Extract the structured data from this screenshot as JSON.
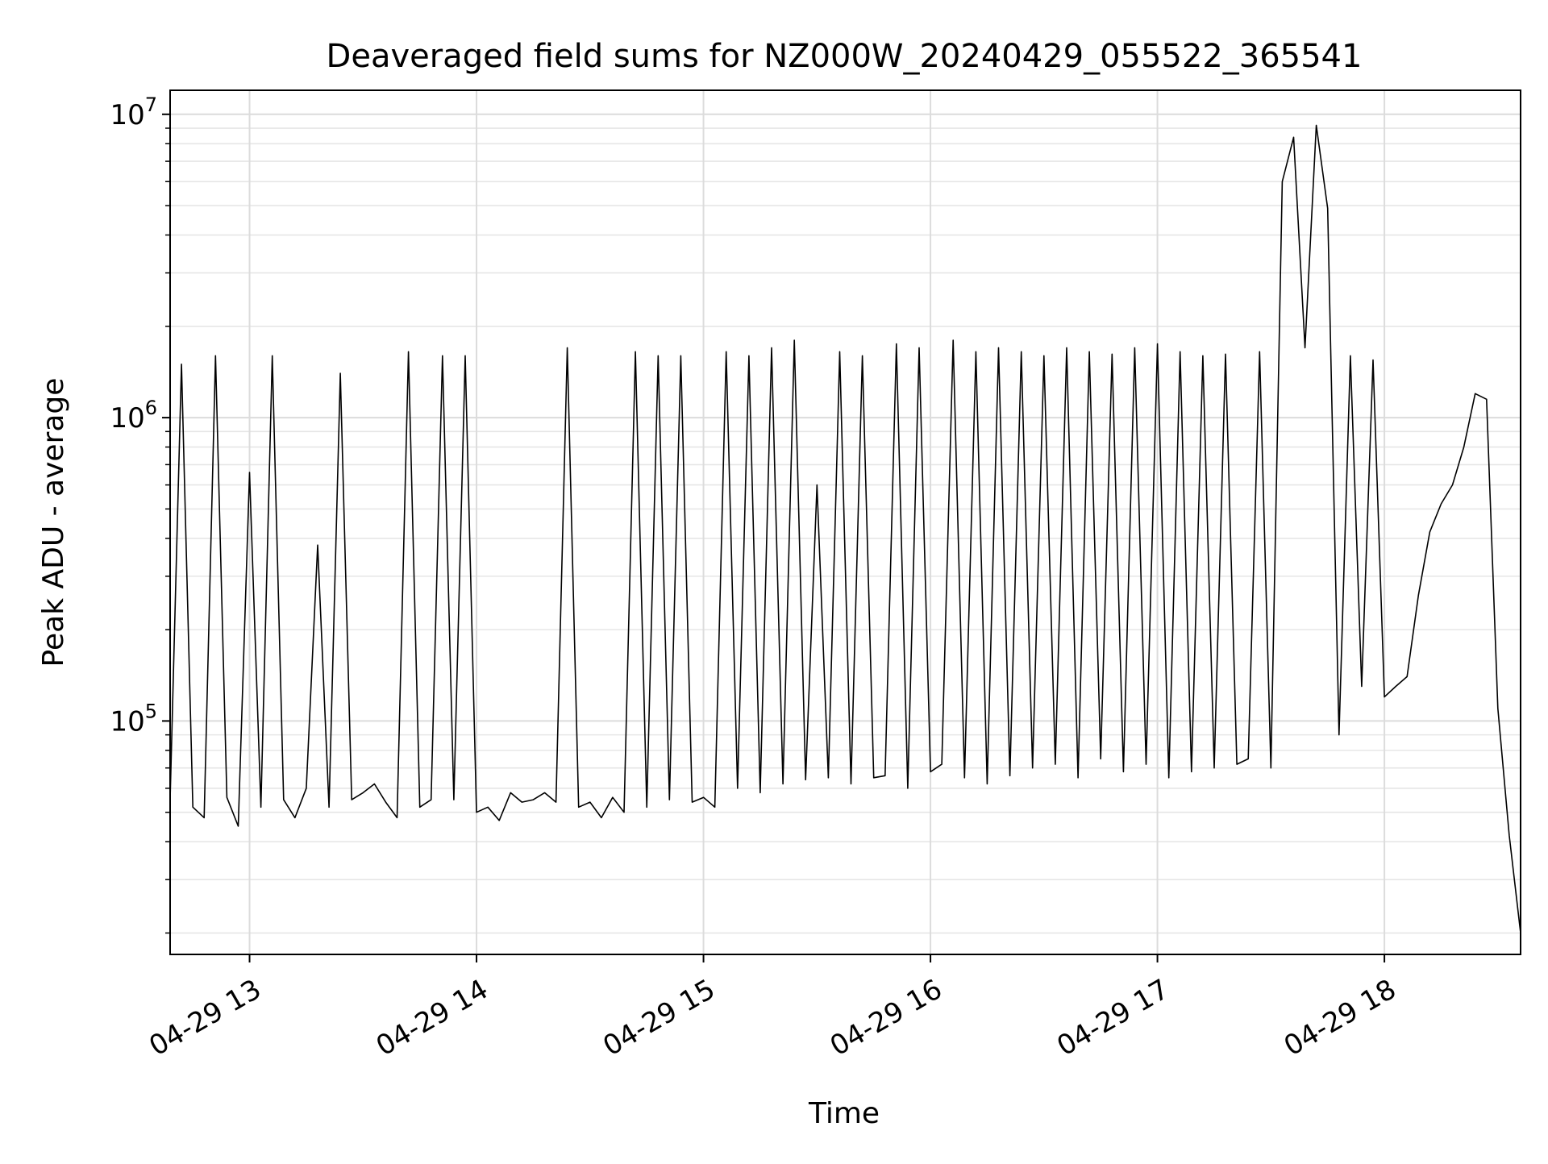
{
  "chart_data": {
    "type": "line",
    "title": "Deaveraged field sums for NZ000W_20240429_055522_365541",
    "xlabel": "Time",
    "ylabel": "Peak ADU - average",
    "yscale": "log",
    "ylim": [
      17000,
      12000000
    ],
    "xlim": [
      "2024-04-29 12:39",
      "2024-04-29 18:36"
    ],
    "x_ticks": [
      {
        "value": "2024-04-29 13:00",
        "label": "04-29 13"
      },
      {
        "value": "2024-04-29 14:00",
        "label": "04-29 14"
      },
      {
        "value": "2024-04-29 15:00",
        "label": "04-29 15"
      },
      {
        "value": "2024-04-29 16:00",
        "label": "04-29 16"
      },
      {
        "value": "2024-04-29 17:00",
        "label": "04-29 17"
      },
      {
        "value": "2024-04-29 18:00",
        "label": "04-29 18"
      }
    ],
    "y_ticks": [
      {
        "value": 100000,
        "base": "10",
        "exp": "5"
      },
      {
        "value": 1000000,
        "base": "10",
        "exp": "6"
      },
      {
        "value": 10000000,
        "base": "10",
        "exp": "7"
      }
    ],
    "grid": true,
    "series": [
      {
        "color": "#000000",
        "x": [
          "2024-04-29 12:39",
          "2024-04-29 12:42",
          "2024-04-29 12:45",
          "2024-04-29 12:48",
          "2024-04-29 12:51",
          "2024-04-29 12:54",
          "2024-04-29 12:57",
          "2024-04-29 13:00",
          "2024-04-29 13:03",
          "2024-04-29 13:06",
          "2024-04-29 13:09",
          "2024-04-29 13:12",
          "2024-04-29 13:15",
          "2024-04-29 13:18",
          "2024-04-29 13:21",
          "2024-04-29 13:24",
          "2024-04-29 13:27",
          "2024-04-29 13:30",
          "2024-04-29 13:33",
          "2024-04-29 13:36",
          "2024-04-29 13:39",
          "2024-04-29 13:42",
          "2024-04-29 13:45",
          "2024-04-29 13:48",
          "2024-04-29 13:51",
          "2024-04-29 13:54",
          "2024-04-29 13:57",
          "2024-04-29 14:00",
          "2024-04-29 14:03",
          "2024-04-29 14:06",
          "2024-04-29 14:09",
          "2024-04-29 14:12",
          "2024-04-29 14:15",
          "2024-04-29 14:18",
          "2024-04-29 14:21",
          "2024-04-29 14:24",
          "2024-04-29 14:27",
          "2024-04-29 14:30",
          "2024-04-29 14:33",
          "2024-04-29 14:36",
          "2024-04-29 14:39",
          "2024-04-29 14:42",
          "2024-04-29 14:45",
          "2024-04-29 14:48",
          "2024-04-29 14:51",
          "2024-04-29 14:54",
          "2024-04-29 14:57",
          "2024-04-29 15:00",
          "2024-04-29 15:03",
          "2024-04-29 15:06",
          "2024-04-29 15:09",
          "2024-04-29 15:12",
          "2024-04-29 15:15",
          "2024-04-29 15:18",
          "2024-04-29 15:21",
          "2024-04-29 15:24",
          "2024-04-29 15:27",
          "2024-04-29 15:30",
          "2024-04-29 15:33",
          "2024-04-29 15:36",
          "2024-04-29 15:39",
          "2024-04-29 15:42",
          "2024-04-29 15:45",
          "2024-04-29 15:48",
          "2024-04-29 15:51",
          "2024-04-29 15:54",
          "2024-04-29 15:57",
          "2024-04-29 16:00",
          "2024-04-29 16:03",
          "2024-04-29 16:06",
          "2024-04-29 16:09",
          "2024-04-29 16:12",
          "2024-04-29 16:15",
          "2024-04-29 16:18",
          "2024-04-29 16:21",
          "2024-04-29 16:24",
          "2024-04-29 16:27",
          "2024-04-29 16:30",
          "2024-04-29 16:33",
          "2024-04-29 16:36",
          "2024-04-29 16:39",
          "2024-04-29 16:42",
          "2024-04-29 16:45",
          "2024-04-29 16:48",
          "2024-04-29 16:51",
          "2024-04-29 16:54",
          "2024-04-29 16:57",
          "2024-04-29 17:00",
          "2024-04-29 17:03",
          "2024-04-29 17:06",
          "2024-04-29 17:09",
          "2024-04-29 17:12",
          "2024-04-29 17:15",
          "2024-04-29 17:18",
          "2024-04-29 17:21",
          "2024-04-29 17:24",
          "2024-04-29 17:27",
          "2024-04-29 17:30",
          "2024-04-29 17:33",
          "2024-04-29 17:36",
          "2024-04-29 17:39",
          "2024-04-29 17:42",
          "2024-04-29 17:45",
          "2024-04-29 17:48",
          "2024-04-29 17:51",
          "2024-04-29 17:54",
          "2024-04-29 17:57",
          "2024-04-29 18:00",
          "2024-04-29 18:03",
          "2024-04-29 18:06",
          "2024-04-29 18:09",
          "2024-04-29 18:12",
          "2024-04-29 18:15",
          "2024-04-29 18:18",
          "2024-04-29 18:21",
          "2024-04-29 18:24",
          "2024-04-29 18:27",
          "2024-04-29 18:30",
          "2024-04-29 18:33",
          "2024-04-29 18:36"
        ],
        "y": [
          55000,
          1500000,
          52000,
          48000,
          1600000,
          56000,
          45000,
          660000,
          52000,
          1600000,
          55000,
          48000,
          60000,
          380000,
          52000,
          1400000,
          55000,
          58000,
          62000,
          54000,
          48000,
          1650000,
          52000,
          55000,
          1600000,
          55000,
          1600000,
          50000,
          52000,
          47000,
          58000,
          54000,
          55000,
          58000,
          54000,
          1700000,
          52000,
          54000,
          48000,
          56000,
          50000,
          1650000,
          52000,
          1600000,
          55000,
          1600000,
          54000,
          56000,
          52000,
          1650000,
          60000,
          1600000,
          58000,
          1700000,
          62000,
          1800000,
          64000,
          600000,
          65000,
          1650000,
          62000,
          1600000,
          65000,
          66000,
          1750000,
          60000,
          1700000,
          68000,
          72000,
          1800000,
          65000,
          1650000,
          62000,
          1700000,
          66000,
          1650000,
          70000,
          1600000,
          72000,
          1700000,
          65000,
          1650000,
          75000,
          1620000,
          68000,
          1700000,
          72000,
          1750000,
          65000,
          1650000,
          68000,
          1600000,
          70000,
          1620000,
          72000,
          75000,
          1650000,
          70000,
          6000000,
          8400000,
          1700000,
          9200000,
          4900000,
          90000,
          1600000,
          130000,
          1550000,
          120000,
          130000,
          140000,
          260000,
          420000,
          520000,
          600000,
          800000,
          1200000,
          1150000,
          110000,
          42000,
          20000
        ]
      }
    ]
  }
}
